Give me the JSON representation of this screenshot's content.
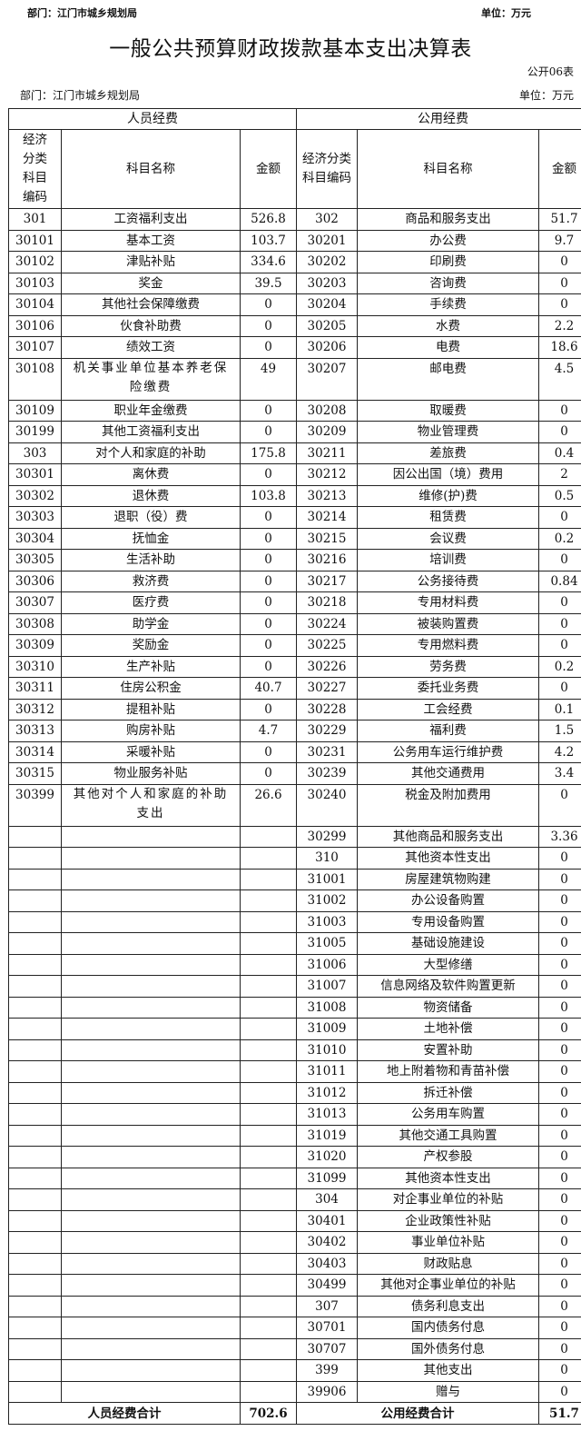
{
  "page_header": {
    "dept": "部门：江门市城乡规划局",
    "unit": "单位：万元"
  },
  "title": "一般公共预算财政拨款基本支出决算表",
  "table_no": "公开06表",
  "dept": "部门：江门市城乡规划局",
  "unit": "单位：万元",
  "groups": {
    "personnel": "人员经费",
    "public": "公用经费"
  },
  "columns": {
    "left_code": "经济分类科目编码",
    "left_name": "科目名称",
    "left_amount": "金额",
    "right_code": "经济分类科目编码",
    "right_name": "科目名称",
    "right_amount": "金额"
  },
  "rows": [
    {
      "lc": "301",
      "ln": "工资福利支出",
      "la": "526.8",
      "rc": "302",
      "rn": "商品和服务支出",
      "ra": "51.7"
    },
    {
      "lc": "30101",
      "ln": "基本工资",
      "la": "103.7",
      "rc": "30201",
      "rn": "办公费",
      "ra": "9.7"
    },
    {
      "lc": "30102",
      "ln": "津贴补贴",
      "la": "334.6",
      "rc": "30202",
      "rn": "印刷费",
      "ra": "0"
    },
    {
      "lc": "30103",
      "ln": "奖金",
      "la": "39.5",
      "rc": "30203",
      "rn": "咨询费",
      "ra": "0"
    },
    {
      "lc": "30104",
      "ln": "其他社会保障缴费",
      "la": "0",
      "rc": "30204",
      "rn": "手续费",
      "ra": "0"
    },
    {
      "lc": "30106",
      "ln": "伙食补助费",
      "la": "0",
      "rc": "30205",
      "rn": "水费",
      "ra": "2.2"
    },
    {
      "lc": "30107",
      "ln": "绩效工资",
      "la": "0",
      "rc": "30206",
      "rn": "电费",
      "ra": "18.6"
    },
    {
      "lc": "30108",
      "ln": "机关事业单位基本养老保险缴费",
      "la": "49",
      "rc": "30207",
      "rn": "邮电费",
      "ra": "4.5",
      "tall": true
    },
    {
      "lc": "30109",
      "ln": "职业年金缴费",
      "la": "0",
      "rc": "30208",
      "rn": "取暖费",
      "ra": "0"
    },
    {
      "lc": "30199",
      "ln": "其他工资福利支出",
      "la": "0",
      "rc": "30209",
      "rn": "物业管理费",
      "ra": "0"
    },
    {
      "lc": "303",
      "ln": "对个人和家庭的补助",
      "la": "175.8",
      "rc": "30211",
      "rn": "差旅费",
      "ra": "0.4"
    },
    {
      "lc": "30301",
      "ln": "离休费",
      "la": "0",
      "rc": "30212",
      "rn": "因公出国（境）费用",
      "ra": "2"
    },
    {
      "lc": "30302",
      "ln": "退休费",
      "la": "103.8",
      "rc": "30213",
      "rn": "维修(护)费",
      "ra": "0.5"
    },
    {
      "lc": "30303",
      "ln": "退职（役）费",
      "la": "0",
      "rc": "30214",
      "rn": "租赁费",
      "ra": "0"
    },
    {
      "lc": "30304",
      "ln": "抚恤金",
      "la": "0",
      "rc": "30215",
      "rn": "会议费",
      "ra": "0.2"
    },
    {
      "lc": "30305",
      "ln": "生活补助",
      "la": "0",
      "rc": "30216",
      "rn": "培训费",
      "ra": "0"
    },
    {
      "lc": "30306",
      "ln": "救济费",
      "la": "0",
      "rc": "30217",
      "rn": "公务接待费",
      "ra": "0.84"
    },
    {
      "lc": "30307",
      "ln": "医疗费",
      "la": "0",
      "rc": "30218",
      "rn": "专用材料费",
      "ra": "0"
    },
    {
      "lc": "30308",
      "ln": "助学金",
      "la": "0",
      "rc": "30224",
      "rn": "被装购置费",
      "ra": "0"
    },
    {
      "lc": "30309",
      "ln": "奖励金",
      "la": "0",
      "rc": "30225",
      "rn": "专用燃料费",
      "ra": "0"
    },
    {
      "lc": "30310",
      "ln": "生产补贴",
      "la": "0",
      "rc": "30226",
      "rn": "劳务费",
      "ra": "0.2"
    },
    {
      "lc": "30311",
      "ln": "住房公积金",
      "la": "40.7",
      "rc": "30227",
      "rn": "委托业务费",
      "ra": "0"
    },
    {
      "lc": "30312",
      "ln": "提租补贴",
      "la": "0",
      "rc": "30228",
      "rn": "工会经费",
      "ra": "0.1"
    },
    {
      "lc": "30313",
      "ln": "购房补贴",
      "la": "4.7",
      "rc": "30229",
      "rn": "福利费",
      "ra": "1.5"
    },
    {
      "lc": "30314",
      "ln": "采暖补贴",
      "la": "0",
      "rc": "30231",
      "rn": "公务用车运行维护费",
      "ra": "4.2"
    },
    {
      "lc": "30315",
      "ln": "物业服务补贴",
      "la": "0",
      "rc": "30239",
      "rn": "其他交通费用",
      "ra": "3.4"
    },
    {
      "lc": "30399",
      "ln": "其他对个人和家庭的补助支出",
      "la": "26.6",
      "rc": "30240",
      "rn": "税金及附加费用",
      "ra": "0",
      "tall": true
    },
    {
      "lc": "",
      "ln": "",
      "la": "",
      "rc": "30299",
      "rn": "其他商品和服务支出",
      "ra": "3.36"
    },
    {
      "lc": "",
      "ln": "",
      "la": "",
      "rc": "310",
      "rn": "其他资本性支出",
      "ra": "0"
    },
    {
      "lc": "",
      "ln": "",
      "la": "",
      "rc": "31001",
      "rn": "房屋建筑物购建",
      "ra": "0"
    },
    {
      "lc": "",
      "ln": "",
      "la": "",
      "rc": "31002",
      "rn": "办公设备购置",
      "ra": "0"
    },
    {
      "lc": "",
      "ln": "",
      "la": "",
      "rc": "31003",
      "rn": "专用设备购置",
      "ra": "0"
    },
    {
      "lc": "",
      "ln": "",
      "la": "",
      "rc": "31005",
      "rn": "基础设施建设",
      "ra": "0"
    },
    {
      "lc": "",
      "ln": "",
      "la": "",
      "rc": "31006",
      "rn": "大型修缮",
      "ra": "0"
    },
    {
      "lc": "",
      "ln": "",
      "la": "",
      "rc": "31007",
      "rn": "信息网络及软件购置更新",
      "ra": "0"
    },
    {
      "lc": "",
      "ln": "",
      "la": "",
      "rc": "31008",
      "rn": "物资储备",
      "ra": "0"
    },
    {
      "lc": "",
      "ln": "",
      "la": "",
      "rc": "31009",
      "rn": "土地补偿",
      "ra": "0"
    },
    {
      "lc": "",
      "ln": "",
      "la": "",
      "rc": "31010",
      "rn": "安置补助",
      "ra": "0"
    },
    {
      "lc": "",
      "ln": "",
      "la": "",
      "rc": "31011",
      "rn": "地上附着物和青苗补偿",
      "ra": "0"
    },
    {
      "lc": "",
      "ln": "",
      "la": "",
      "rc": "31012",
      "rn": "拆迁补偿",
      "ra": "0"
    },
    {
      "lc": "",
      "ln": "",
      "la": "",
      "rc": "31013",
      "rn": "公务用车购置",
      "ra": "0"
    },
    {
      "lc": "",
      "ln": "",
      "la": "",
      "rc": "31019",
      "rn": "其他交通工具购置",
      "ra": "0"
    },
    {
      "lc": "",
      "ln": "",
      "la": "",
      "rc": "31020",
      "rn": "产权参股",
      "ra": "0"
    },
    {
      "lc": "",
      "ln": "",
      "la": "",
      "rc": "31099",
      "rn": "其他资本性支出",
      "ra": "0"
    },
    {
      "lc": "",
      "ln": "",
      "la": "",
      "rc": "304",
      "rn": "对企事业单位的补贴",
      "ra": "0"
    },
    {
      "lc": "",
      "ln": "",
      "la": "",
      "rc": "30401",
      "rn": "企业政策性补贴",
      "ra": "0"
    },
    {
      "lc": "",
      "ln": "",
      "la": "",
      "rc": "30402",
      "rn": "事业单位补贴",
      "ra": "0"
    },
    {
      "lc": "",
      "ln": "",
      "la": "",
      "rc": "30403",
      "rn": "财政贴息",
      "ra": "0"
    },
    {
      "lc": "",
      "ln": "",
      "la": "",
      "rc": "30499",
      "rn": "其他对企事业单位的补贴",
      "ra": "0"
    },
    {
      "lc": "",
      "ln": "",
      "la": "",
      "rc": "307",
      "rn": "债务利息支出",
      "ra": "0"
    },
    {
      "lc": "",
      "ln": "",
      "la": "",
      "rc": "30701",
      "rn": "国内债务付息",
      "ra": "0"
    },
    {
      "lc": "",
      "ln": "",
      "la": "",
      "rc": "30707",
      "rn": "国外债务付息",
      "ra": "0"
    },
    {
      "lc": "",
      "ln": "",
      "la": "",
      "rc": "399",
      "rn": "其他支出",
      "ra": "0"
    },
    {
      "lc": "",
      "ln": "",
      "la": "",
      "rc": "39906",
      "rn": "赠与",
      "ra": "0"
    }
  ],
  "totals": {
    "personnel_label": "人员经费合计",
    "personnel_amount": "702.6",
    "public_label": "公用经费合计",
    "public_amount": "51.7"
  }
}
